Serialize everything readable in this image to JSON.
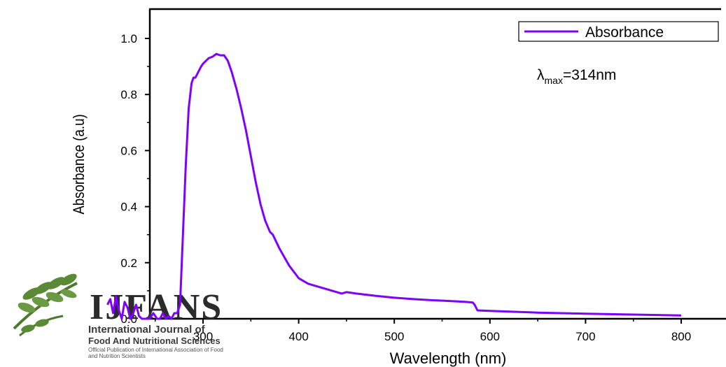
{
  "chart_data": {
    "type": "line",
    "xlabel": "Wavelength (nm)",
    "ylabel": "Absorbance (a.u)",
    "xlim": [
      200,
      850
    ],
    "ylim": [
      0,
      1.1
    ],
    "x_ticks": [
      300,
      400,
      500,
      600,
      700,
      800
    ],
    "y_ticks": [
      0.0,
      0.2,
      0.4,
      0.6,
      0.8,
      1.0
    ],
    "x_tick_labels": [
      "300",
      "400",
      "500",
      "600",
      "700",
      "800"
    ],
    "y_tick_labels": [
      "0.0",
      "0.2",
      "0.4",
      "0.6",
      "0.8",
      "1.0"
    ],
    "grid": false,
    "legend_position": "top-right",
    "series": [
      {
        "name": "Absorbance",
        "color": "#7f00ff",
        "x": [
          200,
          203,
          206,
          209,
          212,
          215,
          218,
          221,
          224,
          227,
          230,
          233,
          236,
          240,
          244,
          248,
          252,
          255,
          258,
          261,
          264,
          267,
          270,
          273,
          276,
          279,
          282,
          285,
          288,
          290,
          292,
          295,
          298,
          300,
          303,
          306,
          310,
          314,
          318,
          322,
          326,
          330,
          335,
          340,
          345,
          350,
          355,
          360,
          365,
          370,
          373,
          380,
          390,
          400,
          410,
          420,
          430,
          440,
          445,
          450,
          460,
          480,
          500,
          520,
          540,
          560,
          575,
          582,
          584,
          587,
          600,
          650,
          700,
          750,
          800
        ],
        "y": [
          0.05,
          0.07,
          0.02,
          0.08,
          0.03,
          0.0,
          0.06,
          0.04,
          0.0,
          0.02,
          0.05,
          0.01,
          0.0,
          0.0,
          0.0,
          0.02,
          0.0,
          0.0,
          0.02,
          0.0,
          0.01,
          0.0,
          0.02,
          0.02,
          0.05,
          0.3,
          0.55,
          0.75,
          0.84,
          0.86,
          0.86,
          0.88,
          0.9,
          0.91,
          0.92,
          0.93,
          0.935,
          0.945,
          0.94,
          0.94,
          0.92,
          0.88,
          0.82,
          0.75,
          0.67,
          0.58,
          0.49,
          0.41,
          0.35,
          0.31,
          0.3,
          0.25,
          0.19,
          0.145,
          0.125,
          0.115,
          0.105,
          0.095,
          0.09,
          0.095,
          0.09,
          0.082,
          0.075,
          0.07,
          0.066,
          0.063,
          0.06,
          0.058,
          0.05,
          0.03,
          0.028,
          0.022,
          0.018,
          0.015,
          0.012
        ]
      }
    ],
    "annotation": {
      "lambda": "λ",
      "sub": "max",
      "rest": "=314nm"
    }
  },
  "watermark": {
    "big": "IJFANS",
    "line1": "International Journal of",
    "line2": "Food And Nutritional Sciences",
    "line3": "Official Publication of International Association of Food",
    "line4": "and Nutrition Scientists"
  }
}
